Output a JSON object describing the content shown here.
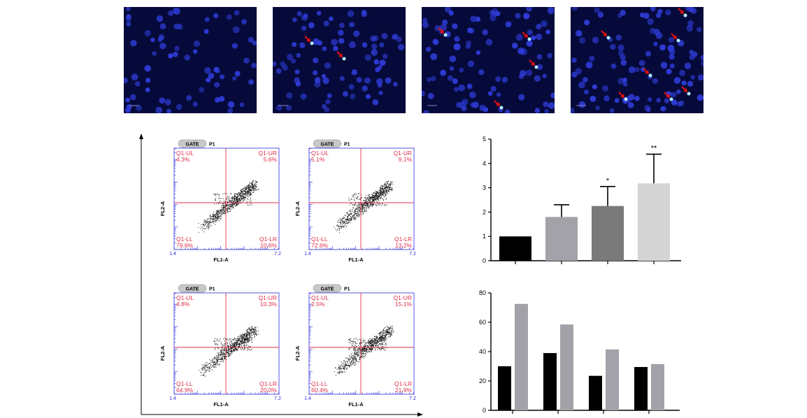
{
  "micrographs": [
    {
      "arrow_count": 0
    },
    {
      "arrow_count": 2
    },
    {
      "arrow_count": 4
    },
    {
      "arrow_count": 7
    }
  ],
  "flow_panels": [
    {
      "gate": "GATE",
      "gate_name": "P1",
      "ul_label": "Q1-UL",
      "ul": "4.3%",
      "ur_label": "Q1-UR",
      "ur": "5.6%",
      "ll_label": "Q1-LL",
      "ll": "79.6%",
      "lr_label": "Q1-LR",
      "lr": "10.6%",
      "xlabel": "FL1-A",
      "ylabel": "FL2-A"
    },
    {
      "gate": "GATE",
      "gate_name": "P1",
      "ul_label": "Q1-UL",
      "ul": "5.1%",
      "ur_label": "Q1-UR",
      "ur": "9.1%",
      "ll_label": "Q1-LL",
      "ll": "72.6%",
      "lr_label": "Q1-LR",
      "lr": "13.2%",
      "xlabel": "FL1-A",
      "ylabel": "FL2-A"
    },
    {
      "gate": "GATE",
      "gate_name": "P1",
      "ul_label": "Q1-UL",
      "ul": "4.8%",
      "ur_label": "Q1-UR",
      "ur": "10.3%",
      "ll_label": "Q1-LL",
      "ll": "64.9%",
      "lr_label": "Q1-LR",
      "lr": "20.0%",
      "xlabel": "FL1-A",
      "ylabel": "FL2-A"
    },
    {
      "gate": "GATE",
      "gate_name": "P1",
      "ul_label": "Q1-UL",
      "ul": "2.5%",
      "ur_label": "Q1-UR",
      "ur": "15.1%",
      "ll_label": "Q1-LL",
      "ll": "60.4%",
      "lr_label": "Q1-LR",
      "lr": "21.9%",
      "xlabel": "FL1-A",
      "ylabel": "FL2-A"
    }
  ],
  "colors": {
    "micro_bg": "#050a3a",
    "nucleus": "#2f3bd6",
    "arrow": "#e01010",
    "quadrant_line": "#e0304a",
    "quadrant_text": "#e0304a",
    "axis_blue": "#2a2ae0",
    "bar_black": "#000000",
    "bar_gray": "#a2a2a8",
    "bar_dark": "#7a7a7a",
    "bar_light": "#d4d4d4"
  },
  "chart_data": [
    {
      "type": "bar",
      "title": "",
      "xlabel": "",
      "ylabel": "",
      "ylim": [
        0,
        5
      ],
      "yticks": [
        "0",
        "1",
        "2",
        "3",
        "4",
        "5"
      ],
      "values": [
        1.0,
        1.8,
        2.25,
        3.18
      ],
      "errors": [
        0,
        0.5,
        0.8,
        1.2
      ],
      "significance": [
        "",
        "",
        "*",
        "**"
      ],
      "colors": [
        "#000000",
        "#a2a2a8",
        "#7a7a7a",
        "#d4d4d4"
      ],
      "grid": false
    },
    {
      "type": "bar",
      "title": "",
      "xlabel": "",
      "ylabel": "",
      "ylim": [
        0,
        80
      ],
      "yticks": [
        "0",
        "20",
        "40",
        "60",
        "80"
      ],
      "group_count": 4,
      "series": [
        {
          "color": "#000000",
          "values": [
            30,
            39,
            23.5,
            29.5
          ]
        },
        {
          "color": "#a2a2a8",
          "values": [
            72.5,
            58.5,
            41.5,
            31.5
          ]
        }
      ],
      "grid": false
    }
  ]
}
